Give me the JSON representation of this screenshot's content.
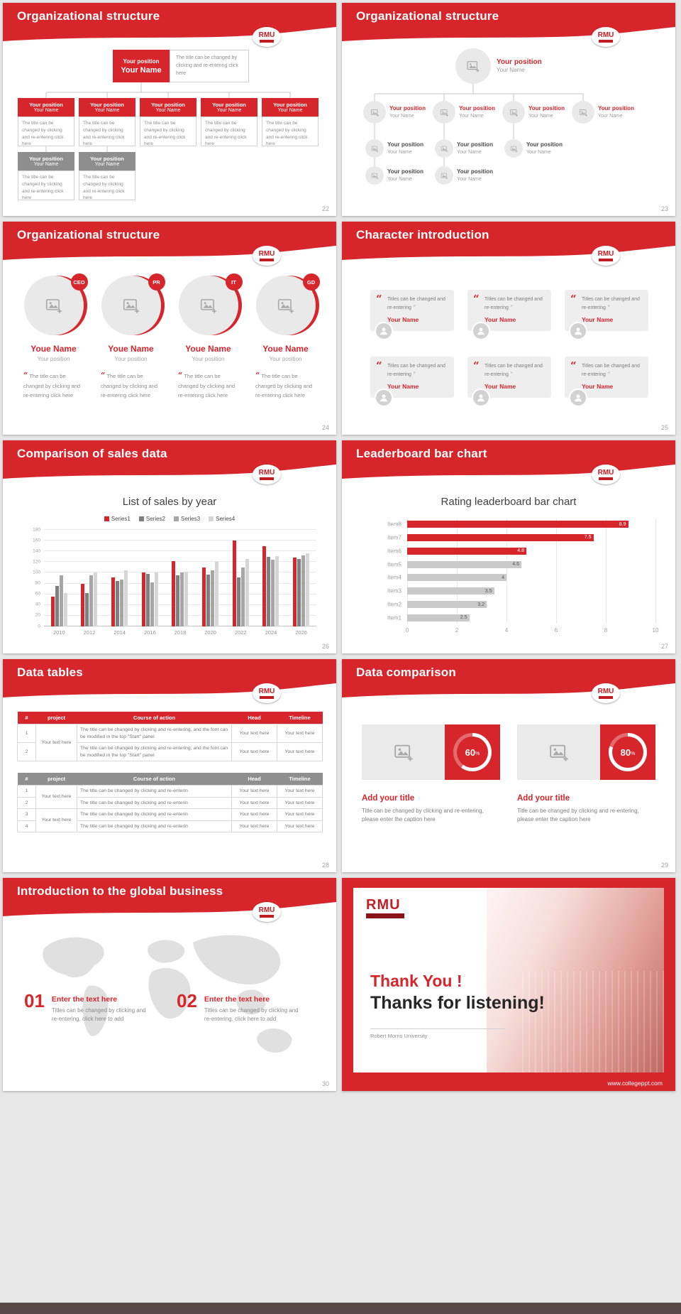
{
  "page": {
    "footer_url": "www.collegeppt.com"
  },
  "badge": {
    "text": "RMU"
  },
  "s22": {
    "title": "Organizational structure",
    "page_num": "22",
    "root": {
      "position": "Your position",
      "name": "Your Name"
    },
    "root_desc": "The title can be changed by clicking and re-entering click here",
    "nodes": [
      {
        "position": "Your position",
        "name": "Your Name",
        "desc": "The title can be changed by clicking and re-entering click here"
      },
      {
        "position": "Your position",
        "name": "Your Name",
        "desc": "The title can be changed by clicking and re-entering click here"
      },
      {
        "position": "Your position",
        "name": "Your Name",
        "desc": "The title can be changed by clicking and re-entering click here"
      },
      {
        "position": "Your position",
        "name": "Your Name",
        "desc": "The title can be changed by clicking and re-entering click here"
      },
      {
        "position": "Your position",
        "name": "Your Name",
        "desc": "The title can be changed by clicking and re-entering click here"
      }
    ],
    "gray_nodes": [
      {
        "position": "Your position",
        "name": "Your Name",
        "desc": "The title can be changed by clicking and re-entering click here"
      },
      {
        "position": "Your position",
        "name": "Your Name",
        "desc": "The title can be changed by clicking and re-entering click here"
      }
    ]
  },
  "s23": {
    "title": "Organizational structure",
    "page_num": "23",
    "root": {
      "position": "Your position",
      "name": "Your Name"
    },
    "level2": [
      {
        "position": "Your position",
        "name": "Your Name"
      },
      {
        "position": "Your position",
        "name": "Your Name"
      },
      {
        "position": "Your position",
        "name": "Your Name"
      },
      {
        "position": "Your position",
        "name": "Your Name"
      }
    ],
    "level3": [
      {
        "position": "Your position",
        "name": "Your Name"
      },
      {
        "position": "Your position",
        "name": "Your Name"
      },
      {
        "position": "Your position",
        "name": "Your Name"
      }
    ],
    "level4": [
      {
        "position": "Your position",
        "name": "Your Name"
      },
      {
        "position": "Your position",
        "name": "Your Name"
      }
    ]
  },
  "s24": {
    "title": "Organizational structure",
    "page_num": "24",
    "profiles": [
      {
        "badge": "CEO",
        "name": "Youe Name",
        "position": "Your position",
        "desc": "The title can be changed by clicking and re-entering click here"
      },
      {
        "badge": "PR",
        "name": "Youe Name",
        "position": "Your position",
        "desc": "The title can be changed by clicking and re-entering click here"
      },
      {
        "badge": "IT",
        "name": "Youe Name",
        "position": "Your position",
        "desc": "The title can be changed by clicking and re-entering click here"
      },
      {
        "badge": "GD",
        "name": "Youe Name",
        "position": "Your position",
        "desc": "The title can be changed by clicking and re-entering click here"
      }
    ]
  },
  "s25": {
    "title": "Character introduction",
    "page_num": "25",
    "cards": [
      {
        "quote": "Titles can be changed and re-entering",
        "name": "Your Name"
      },
      {
        "quote": "Titles can be changed and re-entering",
        "name": "Your Name"
      },
      {
        "quote": "Titles can be changed and re-entering",
        "name": "Your Name"
      },
      {
        "quote": "Titles can be changed and re-entering",
        "name": "Your Name"
      },
      {
        "quote": "Titles can be changed and re-entering",
        "name": "Your Name"
      },
      {
        "quote": "Titles can be changed and re-entering",
        "name": "Your Name"
      }
    ]
  },
  "s26": {
    "title": "Comparison of sales data",
    "page_num": "26"
  },
  "s27": {
    "title": "Leaderboard bar chart",
    "page_num": "27"
  },
  "s28": {
    "title": "Data tables",
    "page_num": "28",
    "headers": [
      "#",
      "project",
      "Course of action",
      "Head",
      "Timeline"
    ],
    "t1": {
      "project": "Your text here",
      "rows": [
        {
          "num": "1",
          "action": "The title can be changed by clicking and re-entering, and the font can be modified in the top \"Start\" panel",
          "head": "Your text here",
          "timeline": "Your text here"
        },
        {
          "num": "2",
          "action": "The title can be changed by clicking and re-entering, and the font can be modified in the top \"Start\" panel",
          "head": "Your text here",
          "timeline": "Your text here"
        }
      ]
    },
    "t2": {
      "projects": [
        "Your text here",
        "Your text here"
      ],
      "rows": [
        {
          "num": "1",
          "action": "The title can be changed by clicking and re-enterin",
          "head": "Your text here",
          "timeline": "Your text here"
        },
        {
          "num": "2",
          "action": "The title can be changed by clicking and re-enterin",
          "head": "Your text here",
          "timeline": "Your text here"
        },
        {
          "num": "3",
          "action": "The title can be changed by clicking and re-enterin",
          "head": "Your text here",
          "timeline": "Your text here"
        },
        {
          "num": "4",
          "action": "The title can be changed by clicking and re-enterin",
          "head": "Your text here",
          "timeline": "Your text here"
        }
      ]
    }
  },
  "s29": {
    "title": "Data comparison",
    "page_num": "29",
    "cards": [
      {
        "percent": "60",
        "unit": "%"
      },
      {
        "percent": "80",
        "unit": "%"
      }
    ],
    "card_title": "Add your title",
    "card_caption": "Title can be changed by clicking and re-entering, please enter the caption here"
  },
  "s30": {
    "title": "Introduction to the global business",
    "page_num": "30",
    "items": [
      {
        "num": "01",
        "heading": "Enter the text here",
        "desc": "Titles can be changed by clicking and re-entering, click here to add"
      },
      {
        "num": "02",
        "heading": "Enter the text here",
        "desc": "Titles can be changed by clicking and re-entering, click here to add"
      }
    ]
  },
  "s31": {
    "logo": "RMU",
    "title_red": "Thank You !",
    "title_dark": "Thanks for listening!",
    "subtitle": "Robert Morris University",
    "url": "www.collegeppt.com"
  },
  "chart_data": [
    {
      "type": "bar",
      "title": "List of sales by year",
      "categories": [
        "2010",
        "2012",
        "2014",
        "2016",
        "2018",
        "2020",
        "2022",
        "2024",
        "2026"
      ],
      "series": [
        {
          "name": "Series1",
          "color": "#d6252b",
          "values": [
            55,
            80,
            92,
            100,
            122,
            110,
            160,
            150,
            128
          ]
        },
        {
          "name": "Series2",
          "color": "#7f7f7f",
          "values": [
            75,
            62,
            85,
            98,
            95,
            96,
            92,
            130,
            126
          ]
        },
        {
          "name": "Series3",
          "color": "#a6a6a6",
          "values": [
            95,
            95,
            88,
            82,
            100,
            105,
            110,
            125,
            132
          ]
        },
        {
          "name": "Series4",
          "color": "#d6d6d6",
          "values": [
            62,
            100,
            105,
            100,
            102,
            120,
            126,
            131,
            137
          ]
        }
      ],
      "xlabel": "",
      "ylabel": "",
      "ylim": [
        0,
        180
      ],
      "yticks": [
        0,
        20,
        40,
        60,
        80,
        100,
        120,
        140,
        160,
        180
      ],
      "grid": true,
      "legend_position": "top"
    },
    {
      "type": "hbar",
      "title": "Rating leaderboard bar chart",
      "categories": [
        "Item8",
        "Item7",
        "Item6",
        "Item5",
        "Item4",
        "Item3",
        "Item2",
        "Item1"
      ],
      "values": [
        8.9,
        7.5,
        4.8,
        4.6,
        4,
        3.5,
        3.2,
        2.5
      ],
      "colors": [
        "#d6252b",
        "#d6252b",
        "#d6252b",
        "#c9c9c9",
        "#c9c9c9",
        "#c9c9c9",
        "#c9c9c9",
        "#c9c9c9"
      ],
      "xlim": [
        0,
        10
      ],
      "xticks": [
        0,
        2,
        4,
        6,
        8,
        10
      ],
      "grid": true
    }
  ]
}
